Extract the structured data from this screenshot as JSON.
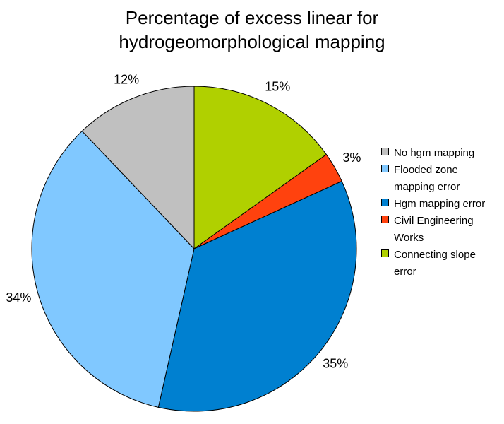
{
  "chart_data": {
    "type": "pie",
    "title_lines": [
      "Percentage of excess linear for",
      "hydrogeomorphological mapping"
    ],
    "slices": [
      {
        "name": "Connecting slope error",
        "legend_lines": [
          "Connecting slope",
          "error"
        ],
        "value": 15,
        "label": "15%",
        "color": "#b0d000"
      },
      {
        "name": "Civil Engineering Works",
        "legend_lines": [
          "Civil Engineering",
          "Works"
        ],
        "value": 3,
        "label": "3%",
        "color": "#ff420e"
      },
      {
        "name": "Hgm mapping error",
        "legend_lines": [
          "Hgm mapping error"
        ],
        "value": 35,
        "label": "35%",
        "color": "#0080d0"
      },
      {
        "name": "Flooded zone mapping error",
        "legend_lines": [
          "Flooded zone",
          "mapping error"
        ],
        "value": 34,
        "label": "34%",
        "color": "#80c8ff"
      },
      {
        "name": "No hgm mapping",
        "legend_lines": [
          "No hgm mapping"
        ],
        "value": 12,
        "label": "12%",
        "color": "#c0c0c0"
      }
    ],
    "legend_order": [
      "No hgm mapping",
      "Flooded zone mapping error",
      "Hgm mapping error",
      "Civil Engineering Works",
      "Connecting slope error"
    ],
    "legend_position": "right",
    "start": "12 o'clock",
    "direction": "clockwise"
  }
}
